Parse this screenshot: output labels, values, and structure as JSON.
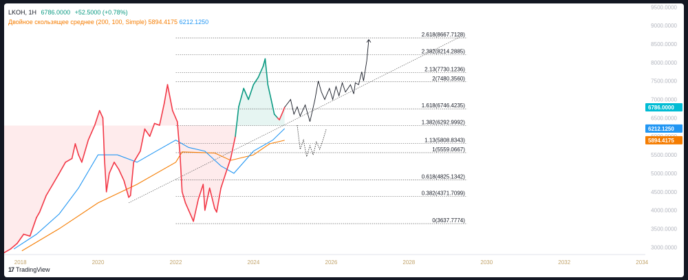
{
  "header": {
    "symbol": "LKOH, 1H",
    "price": "6786.0000",
    "change": "+52.5000 (+0.78%)",
    "indicator_title": "Двойное скользящее среднее (200, 100, Simple)",
    "indicator_value_1": "5894.4175",
    "indicator_value_2": "6212.1250"
  },
  "brand": {
    "name": "TradingView",
    "logo_icon": "tradingview-logo-icon"
  },
  "colors": {
    "up": "#089981",
    "down": "#f23645",
    "orange": "#f57c00",
    "blue": "#2196f3",
    "projection": "#131722",
    "price_label": "#00bcd4",
    "axis_text": "#b2b5be",
    "gray_text": "#787b86"
  },
  "chart_data": {
    "type": "line",
    "x_axis": {
      "type": "date",
      "range": [
        "2017-08-01",
        "2034-02-01"
      ],
      "ticks": [
        "2018",
        "2020",
        "2022",
        "2024",
        "2026",
        "2028",
        "2030",
        "2032",
        "2034"
      ]
    },
    "y_axis": {
      "range": [
        2800,
        9600
      ],
      "position": "right",
      "ticks": [
        "3000.0000",
        "3500.0000",
        "4000.0000",
        "4500.0000",
        "5000.0000",
        "5500.0000",
        "6000.0000",
        "6500.0000",
        "7000.0000",
        "7500.0000",
        "8000.0000",
        "8500.0000",
        "9000.0000",
        "9500.0000"
      ]
    },
    "price_series": {
      "name": "LKOH",
      "points": [
        [
          "2017-08-01",
          2850
        ],
        [
          "2017-10-01",
          2950
        ],
        [
          "2017-12-01",
          3100
        ],
        [
          "2018-02-01",
          3350
        ],
        [
          "2018-04-01",
          3300
        ],
        [
          "2018-06-01",
          3800
        ],
        [
          "2018-07-01",
          3950
        ],
        [
          "2018-09-01",
          4400
        ],
        [
          "2018-11-01",
          4700
        ],
        [
          "2019-01-01",
          5000
        ],
        [
          "2019-03-01",
          5300
        ],
        [
          "2019-05-01",
          5400
        ],
        [
          "2019-06-01",
          5800
        ],
        [
          "2019-07-01",
          5500
        ],
        [
          "2019-08-01",
          5300
        ],
        [
          "2019-10-01",
          5900
        ],
        [
          "2019-12-01",
          6300
        ],
        [
          "2020-01-15",
          6700
        ],
        [
          "2020-02-15",
          6500
        ],
        [
          "2020-03-01",
          5400
        ],
        [
          "2020-03-20",
          4500
        ],
        [
          "2020-04-15",
          5000
        ],
        [
          "2020-06-01",
          5300
        ],
        [
          "2020-07-15",
          5100
        ],
        [
          "2020-09-01",
          4800
        ],
        [
          "2020-10-15",
          4350
        ],
        [
          "2020-11-01",
          4400
        ],
        [
          "2020-12-01",
          5300
        ],
        [
          "2021-02-01",
          5600
        ],
        [
          "2021-03-15",
          6200
        ],
        [
          "2021-05-01",
          6000
        ],
        [
          "2021-06-15",
          6350
        ],
        [
          "2021-08-01",
          6300
        ],
        [
          "2021-09-15",
          6900
        ],
        [
          "2021-10-15",
          7400
        ],
        [
          "2021-12-01",
          6700
        ],
        [
          "2022-01-15",
          6400
        ],
        [
          "2022-02-10",
          5500
        ],
        [
          "2022-03-01",
          4500
        ],
        [
          "2022-04-01",
          4200
        ],
        [
          "2022-06-01",
          3800
        ],
        [
          "2022-06-15",
          3700
        ],
        [
          "2022-08-01",
          4300
        ],
        [
          "2022-09-15",
          4700
        ],
        [
          "2022-10-01",
          4000
        ],
        [
          "2022-11-15",
          4600
        ],
        [
          "2023-01-01",
          4050
        ],
        [
          "2023-01-20",
          3950
        ],
        [
          "2023-03-01",
          4600
        ],
        [
          "2023-04-15",
          5000
        ],
        [
          "2023-06-01",
          5400
        ],
        [
          "2023-07-15",
          6000
        ],
        [
          "2023-08-15",
          6800
        ],
        [
          "2023-10-01",
          7300
        ],
        [
          "2023-11-15",
          7000
        ],
        [
          "2024-01-01",
          7400
        ],
        [
          "2024-02-15",
          7600
        ],
        [
          "2024-04-01",
          7900
        ],
        [
          "2024-04-20",
          8100
        ],
        [
          "2024-05-15",
          7400
        ],
        [
          "2024-06-15",
          7000
        ],
        [
          "2024-07-15",
          6600
        ],
        [
          "2024-08-15",
          6500
        ],
        [
          "2024-09-01",
          6450
        ],
        [
          "2024-10-01",
          6650
        ],
        [
          "2024-10-20",
          6786
        ]
      ]
    },
    "moving_average_200": {
      "name": "SMA 200",
      "points": [
        [
          "2018-01-15",
          2900
        ],
        [
          "2019-01-01",
          3500
        ],
        [
          "2020-01-01",
          4200
        ],
        [
          "2021-01-01",
          4700
        ],
        [
          "2022-01-01",
          5300
        ],
        [
          "2022-03-01",
          5580
        ],
        [
          "2023-01-01",
          5550
        ],
        [
          "2023-06-01",
          5350
        ],
        [
          "2024-01-01",
          5500
        ],
        [
          "2024-06-01",
          5800
        ],
        [
          "2024-10-20",
          5894
        ]
      ]
    },
    "moving_average_100": {
      "name": "SMA 100",
      "points": [
        [
          "2017-11-01",
          2950
        ],
        [
          "2018-06-01",
          3350
        ],
        [
          "2019-01-01",
          3900
        ],
        [
          "2019-07-01",
          4600
        ],
        [
          "2020-01-01",
          5500
        ],
        [
          "2020-07-01",
          5500
        ],
        [
          "2021-01-01",
          5300
        ],
        [
          "2021-07-01",
          5600
        ],
        [
          "2022-01-01",
          5900
        ],
        [
          "2022-05-01",
          5700
        ],
        [
          "2022-10-01",
          5600
        ],
        [
          "2023-03-01",
          5200
        ],
        [
          "2023-07-01",
          5000
        ],
        [
          "2024-01-01",
          5600
        ],
        [
          "2024-07-01",
          5900
        ],
        [
          "2024-10-20",
          6212
        ]
      ]
    },
    "trend_line": {
      "from": [
        "2020-10-15",
        4200
      ],
      "to": [
        "2029-05-01",
        8700
      ]
    },
    "projection_solid": [
      [
        "2024-10-20",
        6786
      ],
      [
        "2024-12-15",
        7000
      ],
      [
        "2025-01-15",
        6600
      ],
      [
        "2025-02-15",
        6800
      ],
      [
        "2025-03-15",
        6550
      ],
      [
        "2025-05-01",
        6850
      ],
      [
        "2025-06-15",
        6400
      ],
      [
        "2025-08-01",
        7000
      ],
      [
        "2025-09-01",
        7500
      ],
      [
        "2025-10-01",
        7200
      ],
      [
        "2025-11-01",
        7000
      ],
      [
        "2025-12-15",
        7300
      ],
      [
        "2026-01-15",
        7000
      ],
      [
        "2026-02-15",
        7350
      ],
      [
        "2026-03-15",
        7100
      ],
      [
        "2026-04-15",
        7450
      ],
      [
        "2026-05-15",
        7200
      ],
      [
        "2026-07-01",
        7400
      ],
      [
        "2026-08-01",
        7150
      ],
      [
        "2026-08-15",
        7450
      ],
      [
        "2026-09-15",
        7400
      ],
      [
        "2026-10-15",
        7750
      ],
      [
        "2026-11-01",
        7500
      ],
      [
        "2026-12-01",
        8050
      ],
      [
        "2026-12-20",
        8620
      ]
    ],
    "projection_dotted": [
      [
        "2025-02-15",
        6300
      ],
      [
        "2025-03-15",
        5650
      ],
      [
        "2025-04-15",
        5900
      ],
      [
        "2025-05-15",
        5450
      ],
      [
        "2025-06-15",
        5750
      ],
      [
        "2025-07-15",
        5500
      ],
      [
        "2025-08-15",
        5850
      ],
      [
        "2025-09-15",
        5650
      ],
      [
        "2025-10-15",
        5900
      ],
      [
        "2025-11-15",
        6200
      ]
    ],
    "fibonacci": {
      "start": "2022-01-01",
      "end": "2029-07-01",
      "levels": [
        {
          "label": "0(3637.7774)",
          "value": 3637.7774
        },
        {
          "label": "0.382(4371.7099)",
          "value": 4371.7099
        },
        {
          "label": "0.618(4825.1342)",
          "value": 4825.1342
        },
        {
          "label": "1(5559.0667)",
          "value": 5559.0667
        },
        {
          "label": "1.13(5808.8343)",
          "value": 5808.8343
        },
        {
          "label": "1.382(6292.9992)",
          "value": 6292.9992
        },
        {
          "label": "1.618(6746.4235)",
          "value": 6746.4235
        },
        {
          "label": "2(7480.3560)",
          "value": 7480.356
        },
        {
          "label": "2.13(7730.1236)",
          "value": 7730.1236
        },
        {
          "label": "2.382(8214.2885)",
          "value": 8214.2885
        },
        {
          "label": "2.618(8667.7128)",
          "value": 8667.7128
        }
      ]
    },
    "price_labels": [
      {
        "text": "6786.0000",
        "value": 6786,
        "color": "#00bcd4"
      },
      {
        "text": "6212.1250",
        "value": 6212.125,
        "color": "#2196f3"
      },
      {
        "text": "5894.4175",
        "value": 5894.4175,
        "color": "#f57c00"
      }
    ],
    "legend_position": "top-left",
    "grid": false
  }
}
